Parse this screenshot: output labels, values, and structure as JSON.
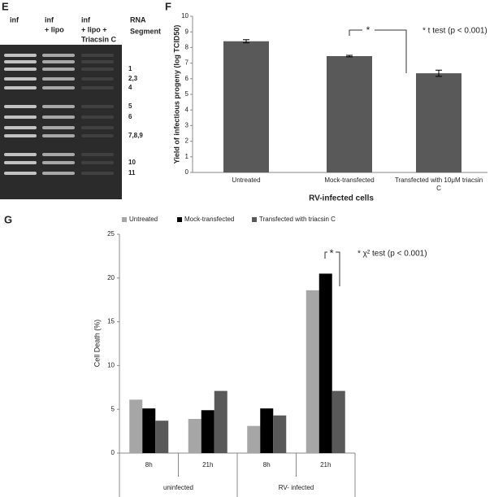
{
  "gel": {
    "label": "E",
    "lanes": [
      [
        "inf"
      ],
      [
        "inf",
        "+ lipo"
      ],
      [
        "inf",
        "+ lipo +",
        "Triacsin C"
      ]
    ],
    "segment_header": [
      "RNA",
      "Segment"
    ],
    "segments": [
      "1",
      "2,3",
      "4",
      "5",
      "6",
      "7,8,9",
      "10",
      "11"
    ]
  },
  "chart_data": [
    {
      "type": "bar",
      "label": "F",
      "ylabel": "Yield of infectious progeny (log TCID50)",
      "xlabel": "RV-infected cells",
      "categories": [
        "Untreated",
        "Mock-transfected",
        "Transfected with 10μM triacsin C"
      ],
      "values": [
        8.4,
        7.45,
        6.35
      ],
      "errors": [
        0.1,
        0.05,
        0.2
      ],
      "color": "#595959",
      "ylim": [
        0,
        10
      ],
      "yticks": [
        0,
        1,
        2,
        3,
        4,
        5,
        6,
        7,
        8,
        9,
        10
      ],
      "annotations": [
        "*",
        "* t test (p < 0.001)"
      ]
    },
    {
      "type": "grouped_bar",
      "label": "G",
      "ylabel": "Cell Death (%)",
      "categories": [
        "8h",
        "21h",
        "8h",
        "21h"
      ],
      "group_labels": [
        "uninfected",
        "RV- infected"
      ],
      "series": [
        {
          "name": "Untreated",
          "color": "#a6a6a6",
          "values": [
            6.1,
            3.9,
            3.1,
            18.6
          ]
        },
        {
          "name": "Mock-transfected",
          "color": "#000000",
          "values": [
            5.1,
            4.9,
            5.1,
            20.5
          ]
        },
        {
          "name": "Transfected with triacsin C",
          "color": "#595959",
          "values": [
            3.7,
            7.1,
            4.3,
            7.1
          ]
        }
      ],
      "ylim": [
        0,
        25
      ],
      "yticks": [
        0,
        5,
        10,
        15,
        20,
        25
      ],
      "annotations": [
        "*",
        "* χ² test (p < 0.001)"
      ]
    }
  ]
}
